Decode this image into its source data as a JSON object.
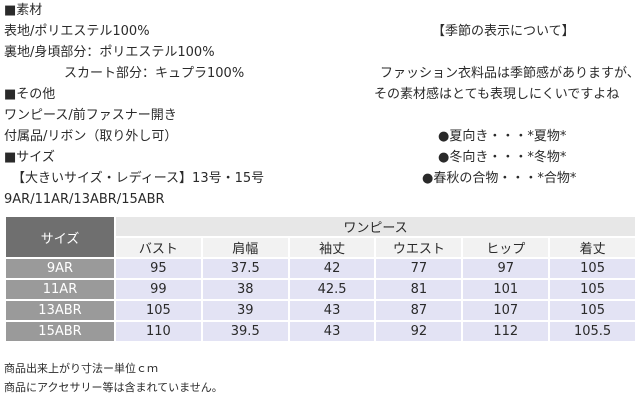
{
  "left": {
    "material_heading": "■素材",
    "outer": "表地/ポリエステル100%",
    "lining": "裏地/身頃部分：ポリエステル100%",
    "skirt": "スカート部分：キュプラ100%",
    "other_heading": "■その他",
    "style": "ワンピース/前ファスナー開き",
    "accessory": "付属品/リボン（取り外し可）",
    "size_heading": "■サイズ",
    "size_range": "【大きいサイズ・レディース】13号・15号",
    "size_codes": "9AR/11AR/13ABR/15ABR"
  },
  "season": {
    "heading": "【季節の表示について】",
    "desc1": "ファッション衣料品は季節感がありますが、",
    "desc2": "その素材感はとても表現しにくいですよね",
    "summer": "●夏向き・・・*夏物*",
    "winter": "●冬向き・・・*冬物*",
    "spring": "●春秋の合物・・・*合物*"
  },
  "table": {
    "corner": "サイズ",
    "group": "ワンピース",
    "columns": [
      "バスト",
      "肩幅",
      "袖丈",
      "ウエスト",
      "ヒップ",
      "着丈"
    ],
    "rows": [
      {
        "size": "9AR",
        "values": [
          "95",
          "37.5",
          "42",
          "77",
          "97",
          "105"
        ]
      },
      {
        "size": "11AR",
        "values": [
          "99",
          "38",
          "42.5",
          "81",
          "101",
          "105"
        ]
      },
      {
        "size": "13ABR",
        "values": [
          "105",
          "39",
          "43",
          "87",
          "107",
          "105"
        ]
      },
      {
        "size": "15ABR",
        "values": [
          "110",
          "39.5",
          "43",
          "92",
          "112",
          "105.5"
        ]
      }
    ]
  },
  "notes": {
    "note1": "商品出来上がり寸法ー単位ｃｍ",
    "note2": "商品にアクセサリー等は含まれていません。"
  },
  "colors": {
    "corner_bg": "#6f6f6f",
    "row_header_bg": "#9a9a9a",
    "cell_bg": "#e3e3f4",
    "header_bg": "#f2f2f2"
  }
}
